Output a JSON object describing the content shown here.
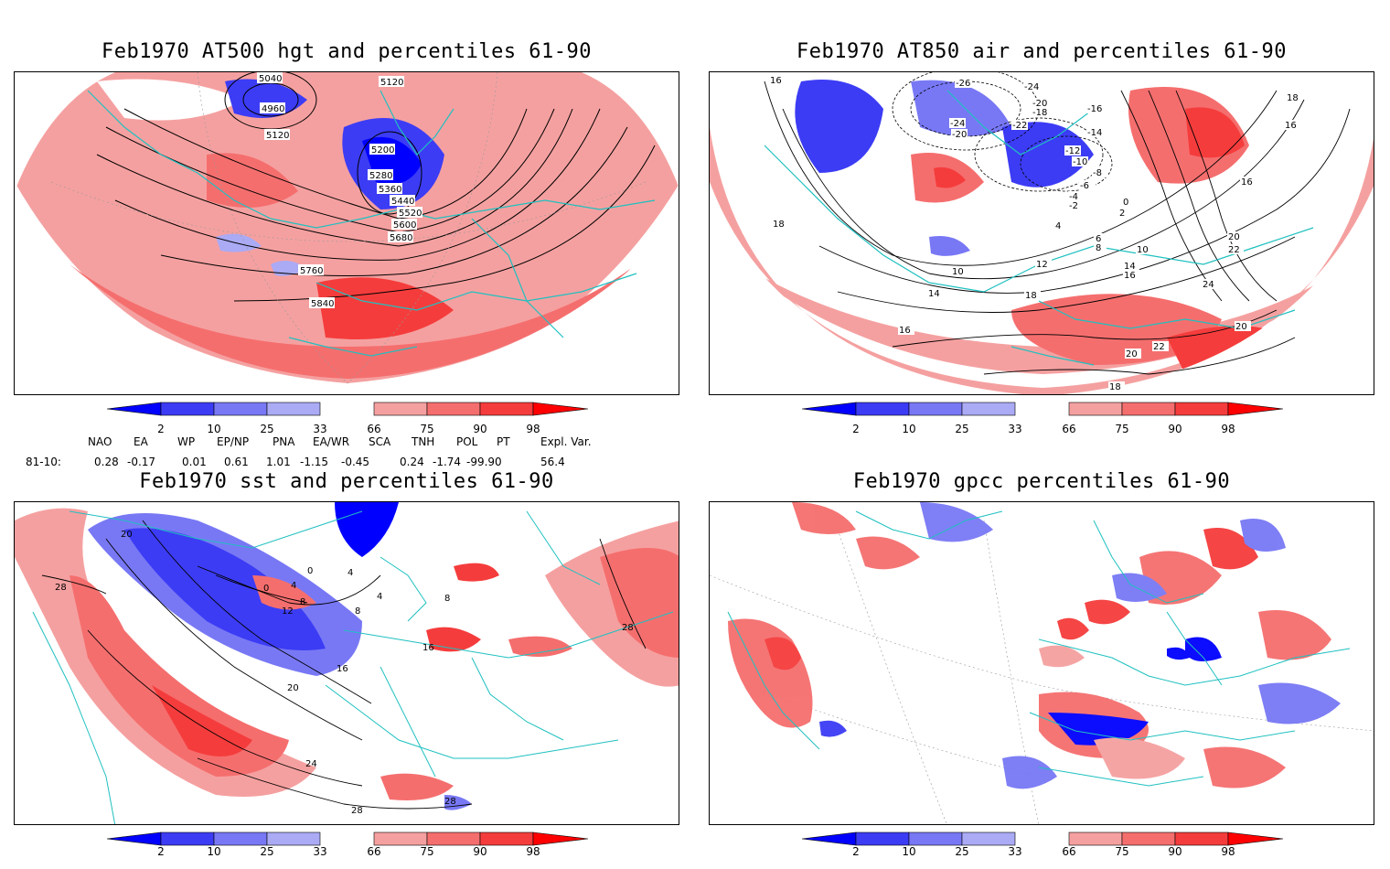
{
  "panels": [
    {
      "title": "Feb1970 AT500 hgt and percentiles 61-90",
      "contour_labels": [
        "5040",
        "5120",
        "4960",
        "5120",
        "5200",
        "5280",
        "5360",
        "5440",
        "5520",
        "5600",
        "5680",
        "5760",
        "5840"
      ]
    },
    {
      "title": "Feb1970 AT850 air and percentiles 61-90",
      "contour_labels": [
        "16",
        "-26",
        "-24",
        "-20",
        "-18",
        "-24",
        "-20",
        "-22",
        "-16",
        "-14",
        "-12",
        "-10",
        "-8",
        "-6",
        "-4",
        "-2",
        "0",
        "2",
        "4",
        "6",
        "8",
        "10",
        "12",
        "14",
        "16",
        "18",
        "16",
        "18",
        "16",
        "20",
        "22",
        "24",
        "20",
        "22",
        "20",
        "18",
        "16",
        "14",
        "18",
        "10"
      ]
    },
    {
      "title": "Feb1970 sst and percentiles 61-90",
      "contour_labels": [
        "28",
        "20",
        "0",
        "4",
        "0",
        "4",
        "8",
        "12",
        "16",
        "20",
        "24",
        "28",
        "28",
        "28",
        "16",
        "8",
        "4",
        "8"
      ]
    },
    {
      "title": "Feb1970 gpcc percentiles 61-90",
      "contour_labels": []
    }
  ],
  "colorbar": {
    "labels": [
      "2",
      "10",
      "25",
      "33",
      "66",
      "75",
      "90",
      "98"
    ],
    "colors": {
      "blue_dark": "#0000ff",
      "blue_mid": "#3c3cf5",
      "blue_light": "#7878f5",
      "blue_pale": "#aaaaf5",
      "red_pale": "#f5a0a0",
      "red_light": "#f56e6e",
      "red_mid": "#f53c3c",
      "red_dark": "#ff0000"
    }
  },
  "indices": {
    "headers": [
      "NAO",
      "EA",
      "WP",
      "EP/NP",
      "PNA",
      "EA/WR",
      "SCA",
      "TNH",
      "POL",
      "PT",
      "Expl. Var."
    ],
    "row_label": "81-10:",
    "values": [
      "0.28",
      "-0.17",
      "0.01",
      "0.61",
      "1.01",
      "-1.15",
      "-0.45",
      "0.24",
      "-1.74",
      "-99.90",
      "56.4"
    ]
  },
  "colors": {
    "coast": "#20c0c0",
    "contour": "#000000",
    "frame": "#000000"
  }
}
